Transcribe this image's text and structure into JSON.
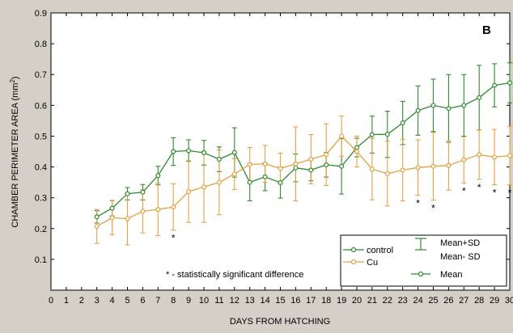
{
  "chart_data": {
    "type": "line",
    "panel_label": "B",
    "xlabel": "DAYS FROM HATCHING",
    "ylabel": "CHAMBER PERIMETER AREA (mm",
    "ylabel_sup": "2",
    "ylabel_end": ")",
    "xlim": [
      0,
      30
    ],
    "ylim": [
      0,
      0.9
    ],
    "x_ticks": [
      0,
      1,
      2,
      3,
      4,
      5,
      6,
      7,
      8,
      9,
      10,
      11,
      12,
      13,
      14,
      15,
      16,
      17,
      18,
      19,
      20,
      21,
      22,
      23,
      24,
      25,
      26,
      27,
      28,
      29,
      30
    ],
    "y_ticks": [
      0.1,
      0.2,
      0.3,
      0.4,
      0.5,
      0.6,
      0.7,
      0.8,
      0.9
    ],
    "x": [
      3,
      4,
      5,
      6,
      7,
      8,
      9,
      10,
      11,
      12,
      13,
      14,
      15,
      16,
      17,
      18,
      19,
      20,
      21,
      22,
      23,
      24,
      25,
      26,
      27,
      28,
      29,
      30
    ],
    "series": [
      {
        "name": "control",
        "color": "#2e8b2e",
        "values": [
          0.238,
          0.266,
          0.313,
          0.318,
          0.372,
          0.45,
          0.453,
          0.446,
          0.425,
          0.447,
          0.35,
          0.368,
          0.349,
          0.397,
          0.39,
          0.407,
          0.402,
          0.463,
          0.505,
          0.506,
          0.543,
          0.583,
          0.6,
          0.59,
          0.6,
          0.625,
          0.665,
          0.673
        ],
        "sd": [
          0.02,
          0.025,
          0.02,
          0.025,
          0.03,
          0.045,
          0.035,
          0.04,
          0.04,
          0.08,
          0.06,
          0.045,
          0.05,
          0.045,
          0.035,
          0.04,
          0.09,
          0.03,
          0.06,
          0.075,
          0.07,
          0.08,
          0.085,
          0.11,
          0.1,
          0.105,
          0.07,
          0.065
        ]
      },
      {
        "name": "Cu",
        "color": "#e8a040",
        "values": [
          0.207,
          0.235,
          0.232,
          0.256,
          0.262,
          0.27,
          0.32,
          0.335,
          0.35,
          0.377,
          0.408,
          0.41,
          0.395,
          0.41,
          0.425,
          0.44,
          0.5,
          0.45,
          0.393,
          0.378,
          0.39,
          0.398,
          0.402,
          0.405,
          0.423,
          0.44,
          0.432,
          0.437
        ],
        "sd": [
          0.055,
          0.055,
          0.085,
          0.07,
          0.085,
          0.075,
          0.1,
          0.115,
          0.105,
          0.05,
          0.055,
          0.06,
          0.05,
          0.12,
          0.08,
          0.1,
          0.065,
          0.05,
          0.1,
          0.105,
          0.1,
          0.09,
          0.11,
          0.08,
          0.075,
          0.08,
          0.09,
          0.095
        ]
      }
    ],
    "significant_days": [
      8,
      24,
      25,
      27,
      28,
      29,
      30
    ],
    "significance_marker": "*",
    "annotation": "* - statistically significant difference",
    "legend": {
      "placement": "bottom-right",
      "entries": [
        "control",
        "Cu"
      ],
      "errorbar_labels": [
        "Mean+SD",
        "Mean- SD"
      ],
      "mean_label": "Mean"
    },
    "grid": false
  }
}
